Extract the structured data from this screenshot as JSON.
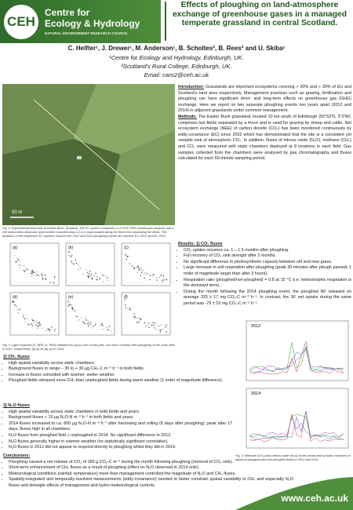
{
  "header": {
    "logo": "CEH",
    "org_line1": "Centre for",
    "org_line2": "Ecology & Hydrology",
    "org_sub": "NATURAL ENVIRONMENT RESEARCH COUNCIL",
    "title": "Effects of ploughing on land-atmosphere exchange of greenhouse gases in a managed temperate grassland in central Scotland."
  },
  "authors": {
    "names": "C. Helfter¹, J. Drewer¹, M. Anderson¹, B. Scholtes², B. Rees² and U. Skiba¹",
    "affiliation1": "¹Centre for Ecology and Hydrology, Edinburgh, UK.",
    "affiliation2": "²Scotland's Rural College, Edinburgh, UK.",
    "email": "Email: caro2@ceh.ac.uk"
  },
  "figure1": {
    "scale": "50 m",
    "caption": "Fig. 1: Experimental field sites at Easter Bush, Scotland. The EC system comprises a LI-COR 7000 closed-path analyser and a Gill Instruments ultrasonic anemometer mounted atop a 2.5 m mast located along the fence line separating the fields. The locations of the respective EC systems used for the 2012 and 2014 ploughing events are marked: EC 2012 and EC 2014."
  },
  "introduction": {
    "heading": "Introduction:",
    "text": " Grasslands are important ecosystems covering > 20% and > 30% of EU and Scotland's land area respectively. Management practices such as grazing, fertilisation and ploughing can have significant short- and long-term effects on greenhouse gas (GHG) exchange. Here we report on two separate ploughing events two years apart (2012 and 2014) in adjacent grasslands under common management."
  },
  "methods": {
    "heading": "Methods:",
    "text": " The Easter Bush grassland, located 10 km south of Edinburgh (55°52'N, 3°2'W), comprises two fields separated by a fence and is used for grazing by sheep and cattle. Net ecosystem exchange (NEE) of carbon dioxide (CO₂) has been monitored continuously by eddy-covariance (EC) since 2002 which has demonstrated that the site is a consistent yet variable sink of atmospheric CO₂. In addition, fluxes of nitrous oxide (N₂O), methane (CH₄) and CO₂ were measured with static chambers deployed at 8 locations in each field. Gas samples collected from the chambers were analysed by gas chromatography and fluxes calculated for each 60-minute sampling period."
  },
  "figure2": {
    "panels": [
      "(a)",
      "(b)",
      "(c)",
      "(d)",
      "(e)",
      "(f)"
    ],
    "caption": "Fig. 2: Light response (F_NEE vs. PAR) obtained for (a)-(c) one month prior, one and 2 months after ploughing of the south field in 2012, respectively; (d)-(f) as (a)-(c) in 2014."
  },
  "results": {
    "heading": "Results: 1) CO₂ fluxes",
    "items": [
      "CO₂ uptake resumes ca. 1 – 1.5 months after ploughing.",
      "Full recovery of CO₂ sink strength after 2 months.",
      "No significant difference in photosynthetic capacity between old and new grass.",
      "Large increase in soil respiration after ploughing (peak 30 minutes after plough passed; 1 order of magnitude larger than after 3 hours).",
      "Respiration ratio (ploughed/non-ploughed) = 0.8 at 15 °C (i.e. heterotrophic respiration is the dominant term).",
      "During the month following the 2014 ploughing event, the ploughed NF released on average 333 ± 17 mg CO₂-C m⁻² h⁻¹. In contrast, the SF net uptake during the same period was -79 ± 19 mg CO₂-C m⁻² h⁻¹."
    ]
  },
  "figure3": {
    "year1": "2012",
    "year2": "2014",
    "caption": "Fig. 3: Methane (CH₄) and nitrous oxide (N₂O) fluxes measured by static chambers in adjacent ploughed and non-ploughed fields in 2012 and 2014."
  },
  "ch4": {
    "heading": "2) CH₄ fluxes",
    "items": [
      "High spatial variability across static chambers.",
      "Background fluxes in range – 30 to + 30 μg CH₄-C m⁻² h⁻¹ in both fields.",
      "Increase in fluxes coincided with warmer, wetter weather.",
      "Ploughed fields released more CH₄ than unploughed fields during warm weather (1 order of magnitude difference)."
    ]
  },
  "n2o": {
    "heading": "3) N₂O fluxes",
    "items": [
      "High spatial variability across static chambers in both fields and years.",
      "Background fluxes < 10 μg N₂O-N m⁻² h⁻¹ in both fields and years.",
      "2014 fluxes increased to ca. 800 μg N₂O-N m⁻² h⁻¹ after harrowing and rolling (6 days after ploughing); peak after 17 days, fluxes high in all chambers.",
      "N₂O fluxes from ploughed field > unploughed in 2014. No significant difference in 2012.",
      "N₂O fluxes generally higher in warmer weather (no statistically significant correlation).",
      "N₂O fluxes in 2012 did not appear to respond directly to ploughing whilst they did in 2014."
    ]
  },
  "conclusions": {
    "heading": "Conclusions:",
    "items": [
      "Ploughing caused a net release of CO₂ of 183 g CO₂-C m⁻² during the month following ploughing (removal of CO₂ sink).",
      "Short-term enhancement of CH₄ fluxes as a result of ploughing (effect on N₂O observed in 2014 only).",
      "Meteorological conditions (rainfall, temperature) more than management controlled the magnitude of N₂O and CH₄ fluxes.",
      "Spatially-integrated and temporally-resolved measurements (eddy-covariance) needed to better constrain spatial variability in CH₄ and especially N₂O fluxes and detangle effects of management and hydro-meteorological controls."
    ]
  },
  "footer": {
    "url": "www.ceh.ac.uk"
  }
}
